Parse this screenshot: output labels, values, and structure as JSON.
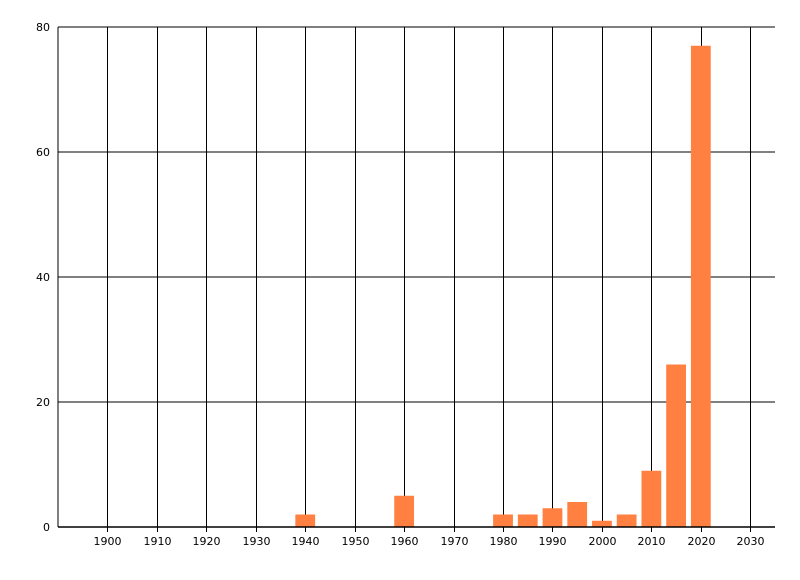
{
  "chart_data": {
    "type": "bar",
    "title": "",
    "xlabel": "",
    "ylabel": "",
    "x": [
      1940,
      1960,
      1980,
      1985,
      1990,
      1995,
      2000,
      2005,
      2010,
      2015,
      2020
    ],
    "values": [
      2,
      5,
      2,
      2,
      3,
      4,
      1,
      2,
      9,
      26,
      77
    ],
    "xlim": [
      1890,
      2035
    ],
    "ylim": [
      0,
      80
    ],
    "x_ticks": [
      1900,
      1910,
      1920,
      1930,
      1940,
      1950,
      1960,
      1970,
      1980,
      1990,
      2000,
      2010,
      2020,
      2030
    ],
    "y_ticks": [
      0,
      20,
      40,
      60,
      80
    ],
    "bar_width_years": 4,
    "grid": true,
    "bar_color": "#FF8040"
  }
}
